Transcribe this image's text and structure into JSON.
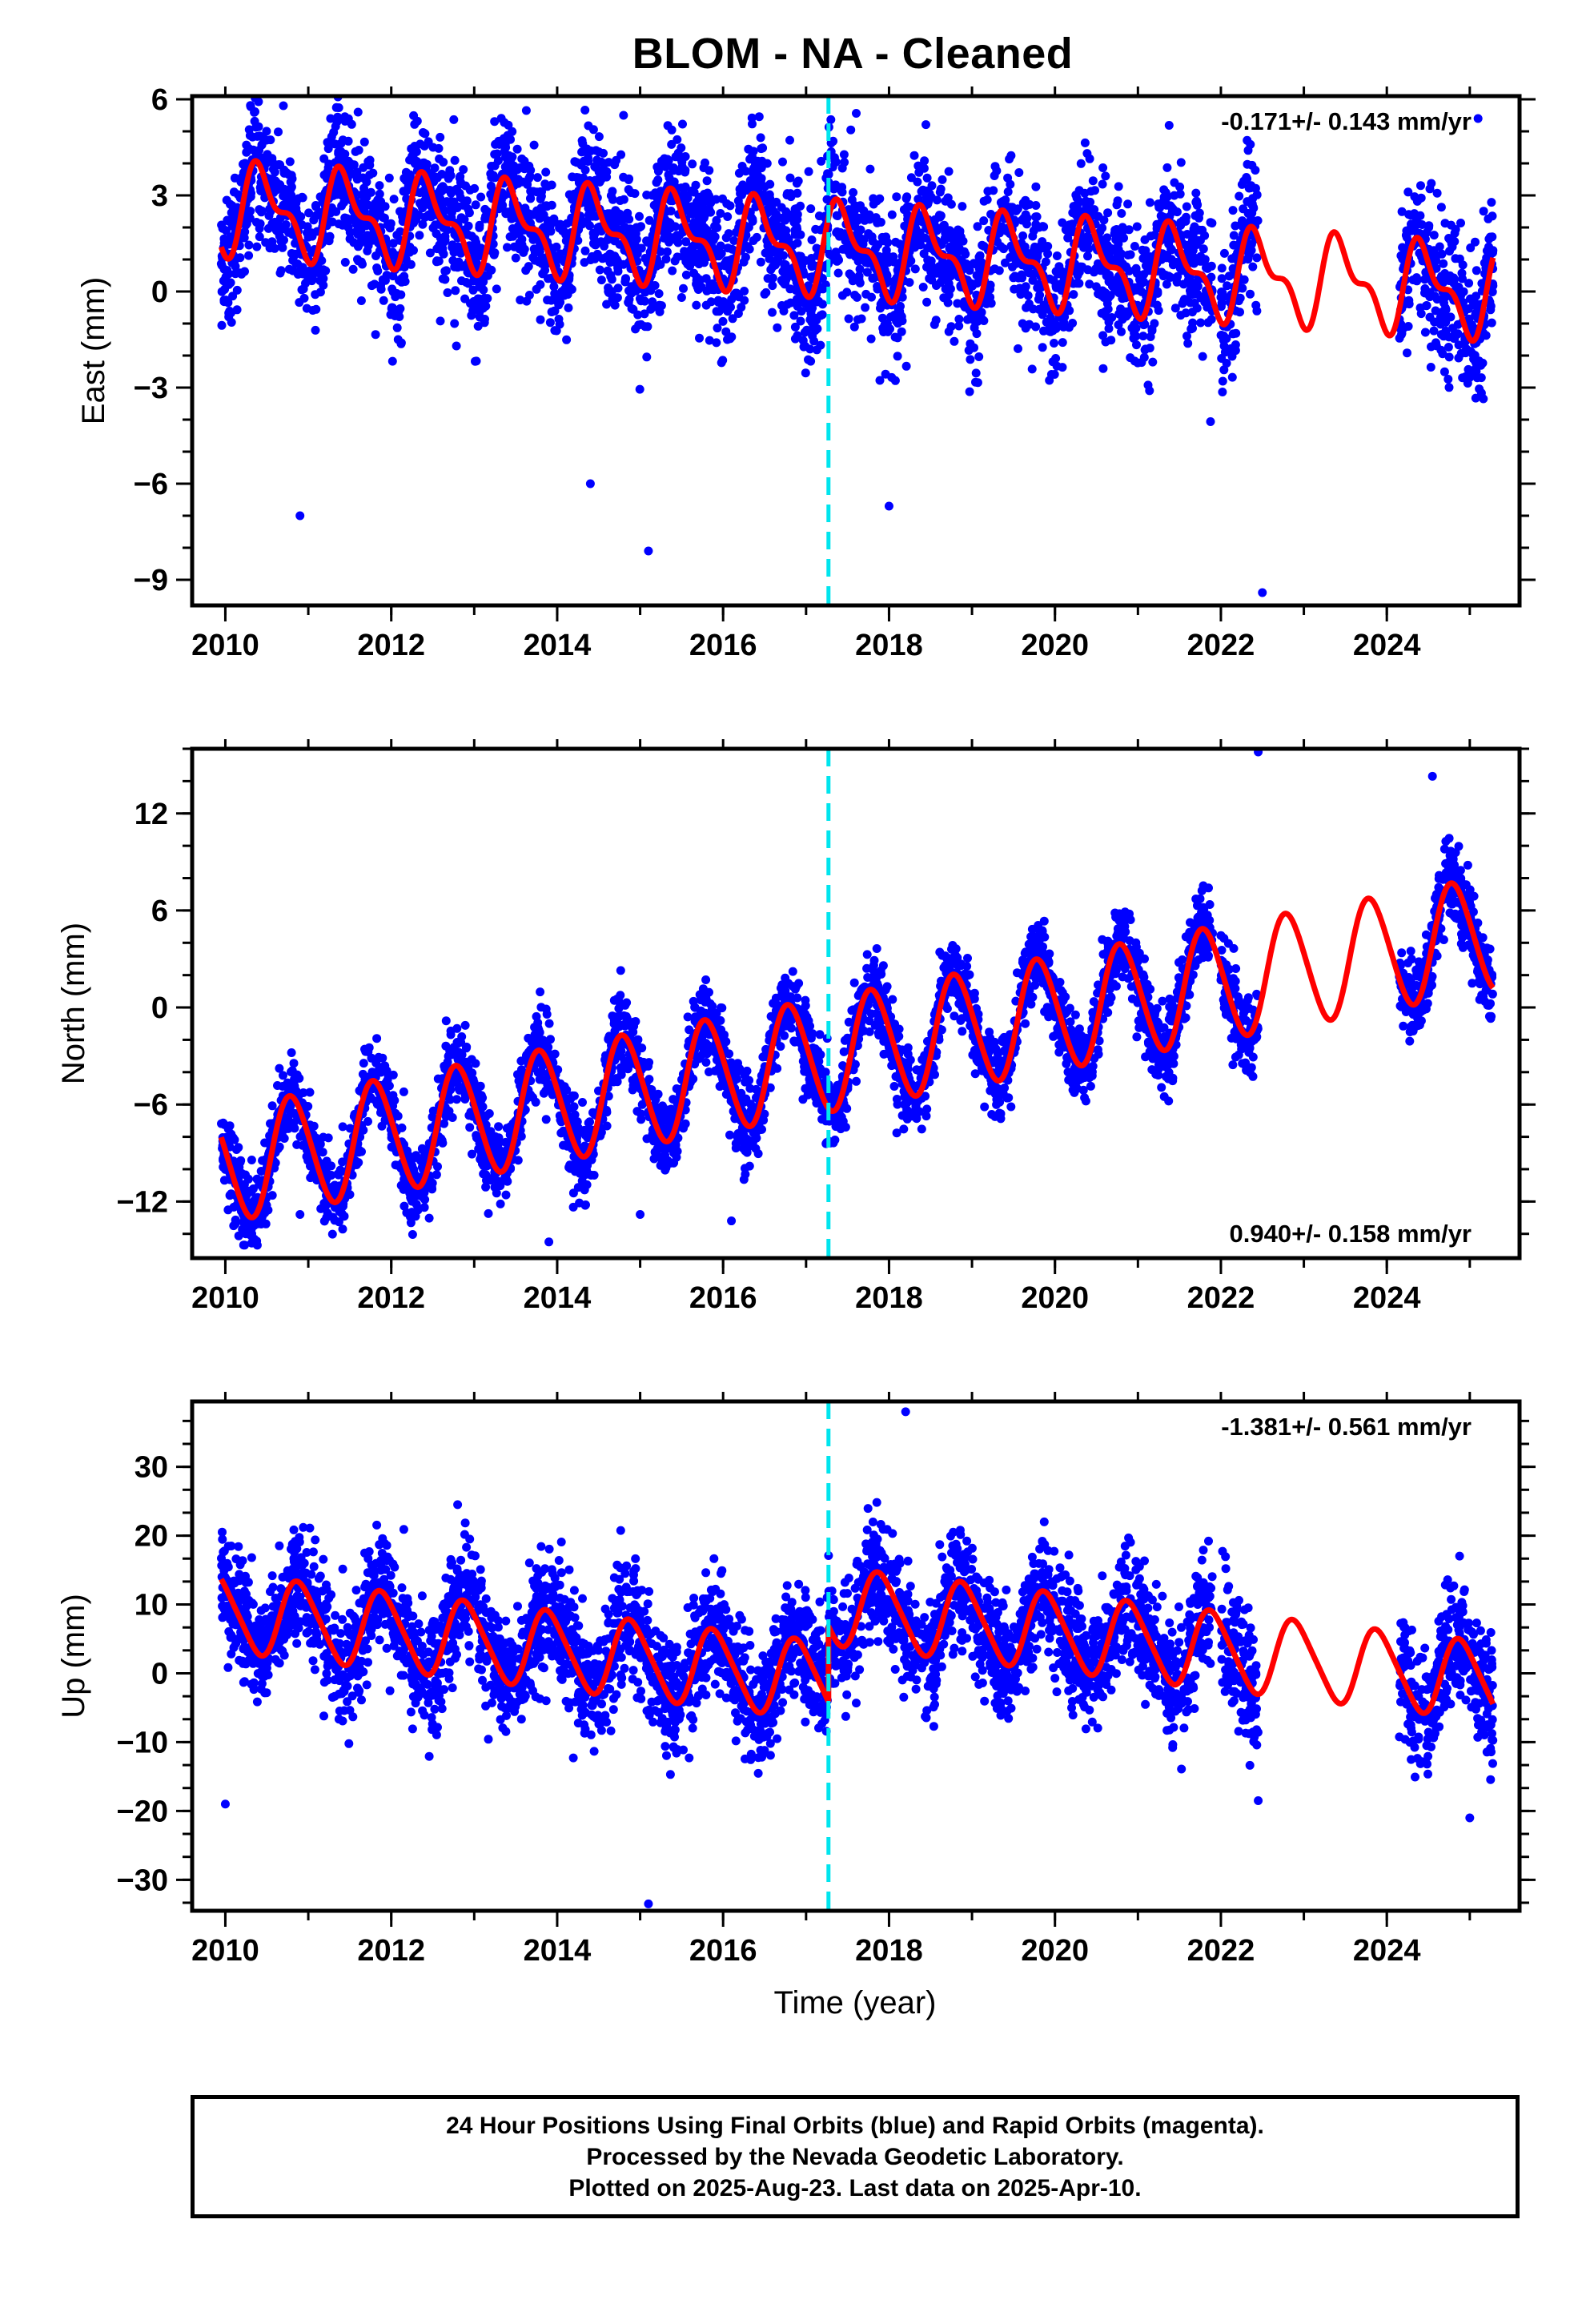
{
  "title": "BLOM  - NA - Cleaned",
  "xlabel": "Time (year)",
  "footer": {
    "line1": "24 Hour Positions Using Final Orbits (blue) and Rapid Orbits (magenta).",
    "line2": "Processed by the Nevada Geodetic Laboratory.",
    "line3": "Plotted on 2025-Aug-23. Last data on 2025-Apr-10."
  },
  "colors": {
    "data": "#0000ff",
    "model": "#ff0000",
    "offset_line": "#00e5ee",
    "frame": "#000000"
  },
  "chart_data": [
    {
      "type": "scatter",
      "component": "East",
      "ylabel": "East (mm)",
      "rate_label": "-0.171+/- 0.143 mm/yr",
      "rate_position": "top-right",
      "xlim": [
        2009.6,
        2025.6
      ],
      "ylim": [
        -9.8,
        6.1
      ],
      "xticks": [
        2010,
        2012,
        2014,
        2016,
        2018,
        2020,
        2022,
        2024
      ],
      "yticks": [
        -9,
        -6,
        -3,
        0,
        3,
        6
      ],
      "offset_epoch": 2017.27,
      "model": {
        "intercept": 1.3,
        "trend": -0.171,
        "annual_amp": 1.2,
        "annual_phase": 0.2,
        "semi_amp": 0.6
      },
      "data_spans": [
        [
          2009.95,
          2021.9
        ],
        [
          2022.0,
          2022.45
        ],
        [
          2024.15,
          2025.28
        ]
      ],
      "scatter_sigma": 1.1,
      "sample_points": [
        [
          2010.7,
          5.8
        ],
        [
          2011.6,
          5.6
        ],
        [
          2014.8,
          5.5
        ],
        [
          2015.5,
          4.1
        ],
        [
          2025.1,
          5.4
        ],
        [
          2010.9,
          -7.0
        ],
        [
          2014.4,
          -6.0
        ],
        [
          2015.1,
          -8.1
        ],
        [
          2022.5,
          -9.4
        ],
        [
          2018.0,
          -6.7
        ]
      ]
    },
    {
      "type": "scatter",
      "component": "North",
      "ylabel": "North (mm)",
      "rate_label": "0.940+/- 0.158 mm/yr",
      "rate_position": "bottom-right",
      "xlim": [
        2009.6,
        2025.6
      ],
      "ylim": [
        -15.5,
        16.0
      ],
      "xticks": [
        2010,
        2012,
        2014,
        2016,
        2018,
        2020,
        2022,
        2024
      ],
      "yticks": [
        -12,
        -6,
        0,
        6,
        12
      ],
      "offset_epoch": 2017.27,
      "model": {
        "intercept": -2.7,
        "trend": 0.94,
        "annual_amp": 3.5,
        "annual_phase": 0.55,
        "semi_amp": 0.3
      },
      "data_spans": [
        [
          2009.95,
          2021.9
        ],
        [
          2022.0,
          2022.45
        ],
        [
          2024.15,
          2025.28
        ]
      ],
      "scatter_sigma": 1.2,
      "sample_points": [
        [
          2022.45,
          15.8
        ],
        [
          2024.55,
          14.3
        ],
        [
          2013.9,
          -14.5
        ],
        [
          2015.0,
          -12.8
        ],
        [
          2016.1,
          -13.2
        ],
        [
          2010.1,
          -13.5
        ],
        [
          2010.9,
          -12.8
        ]
      ]
    },
    {
      "type": "scatter",
      "component": "Up",
      "ylabel": "Up (mm)",
      "rate_label": "-1.381+/- 0.561 mm/yr",
      "rate_position": "top-right",
      "xlim": [
        2009.6,
        2025.6
      ],
      "ylim": [
        -34.5,
        39.5
      ],
      "xticks": [
        2010,
        2012,
        2014,
        2016,
        2018,
        2020,
        2022,
        2024
      ],
      "yticks": [
        -30,
        -20,
        -10,
        0,
        10,
        20,
        30
      ],
      "offset_epoch": 2017.27,
      "offset_step": 11.0,
      "model": {
        "intercept": 4.0,
        "trend": -1.381,
        "annual_amp": 5.5,
        "annual_phase": 0.65,
        "semi_amp": 0.8
      },
      "data_spans": [
        [
          2009.95,
          2021.9
        ],
        [
          2022.0,
          2022.45
        ],
        [
          2024.15,
          2025.28
        ]
      ],
      "scatter_sigma": 4.2,
      "sample_points": [
        [
          2018.2,
          38.0
        ],
        [
          2012.8,
          24.5
        ],
        [
          2015.1,
          -33.5
        ],
        [
          2010.0,
          -19.0
        ],
        [
          2022.45,
          -18.5
        ],
        [
          2025.0,
          -21.0
        ]
      ]
    }
  ]
}
